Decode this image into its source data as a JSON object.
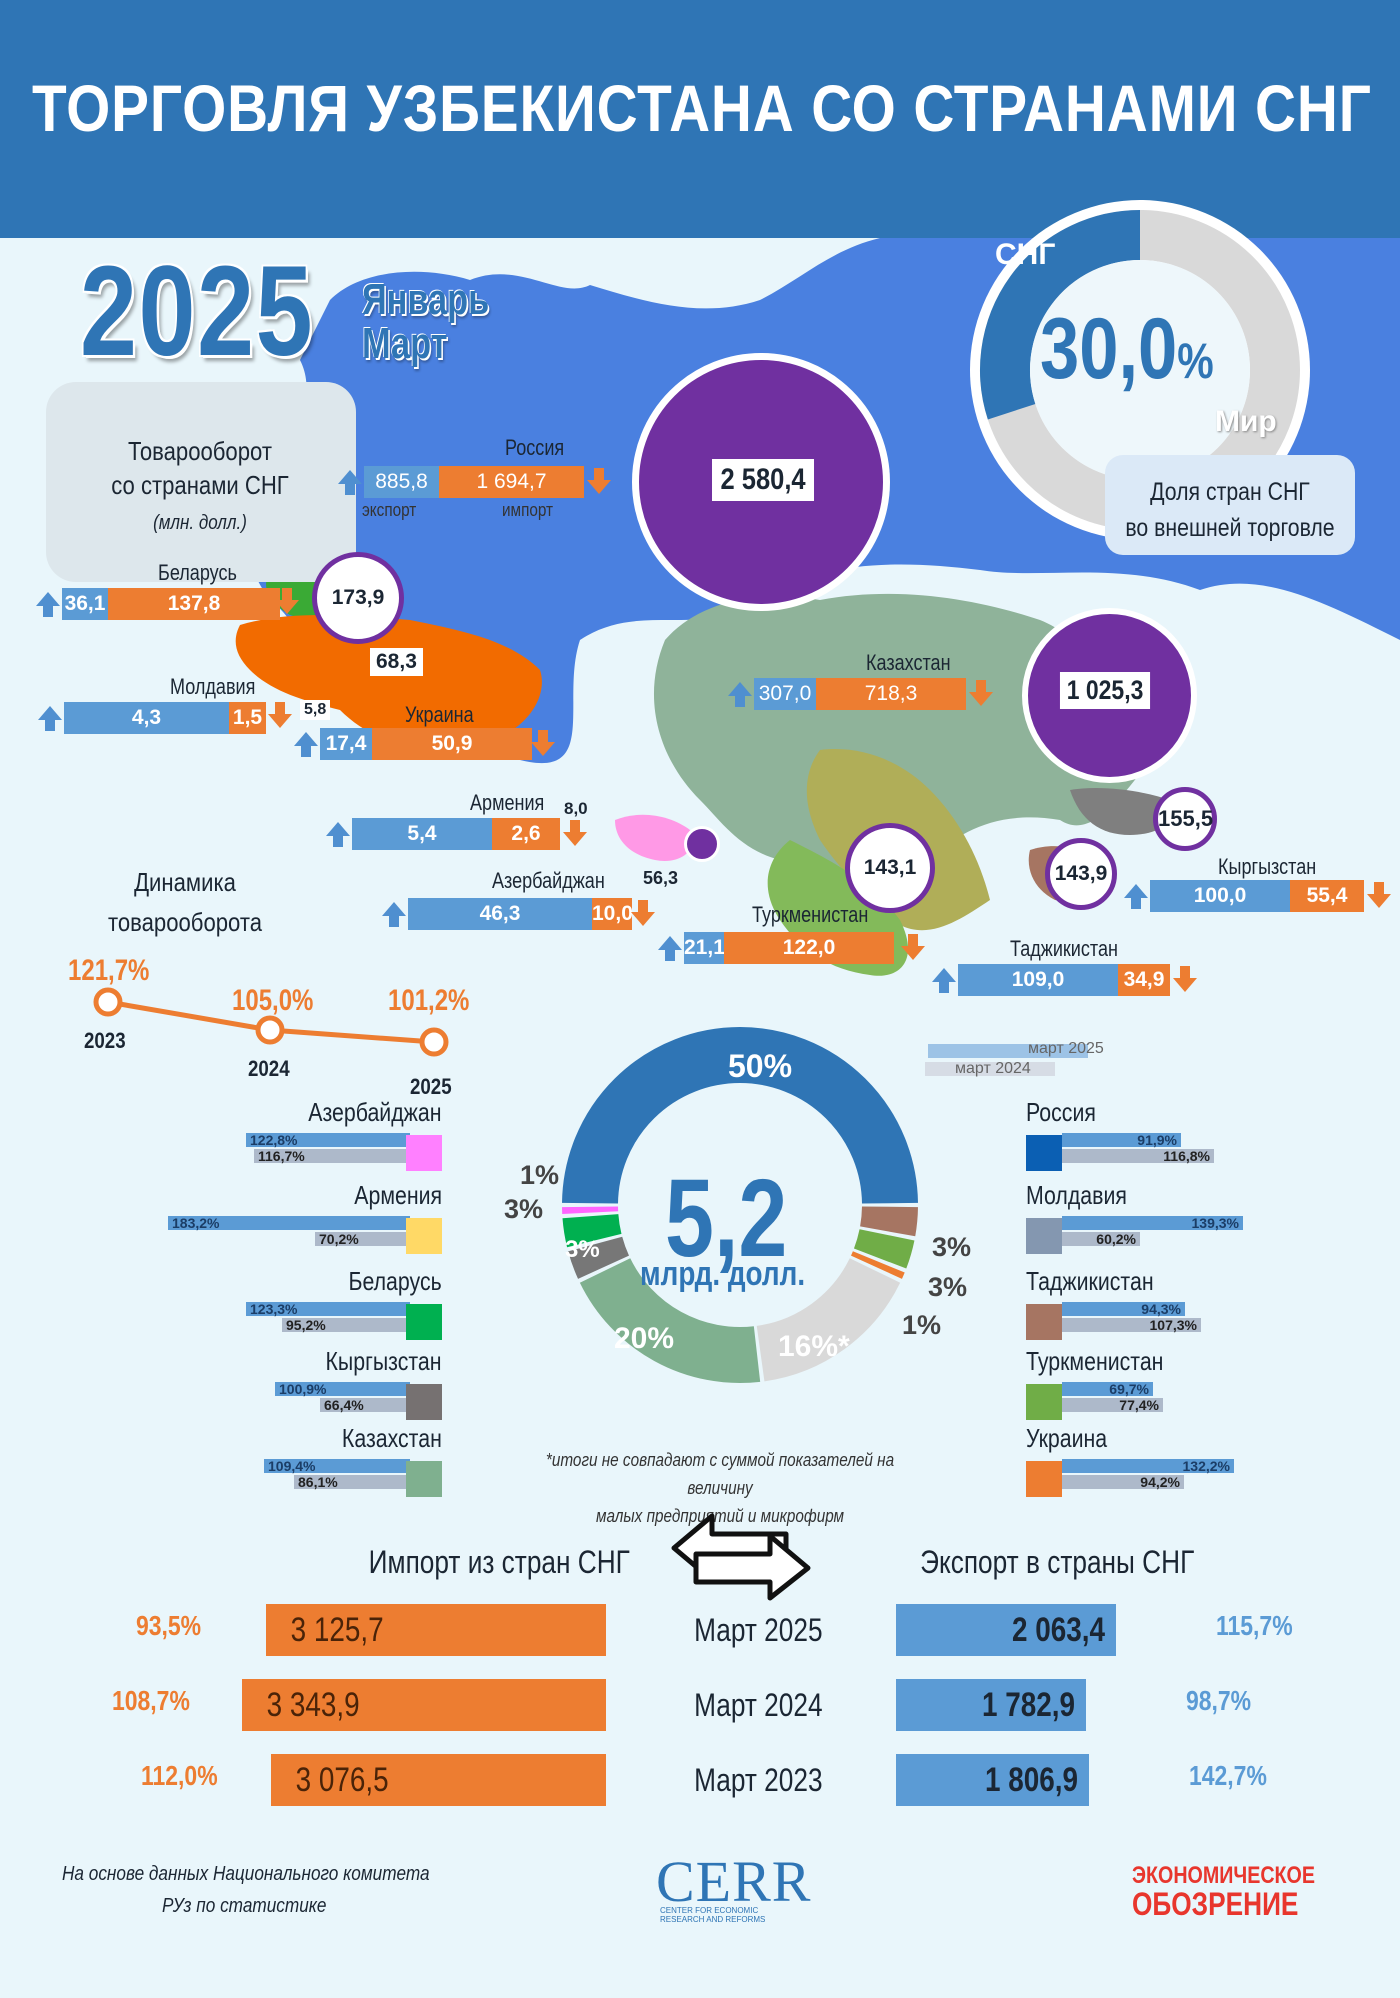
{
  "header": {
    "title": "ТОРГОВЛЯ УЗБЕКИСТАНА СО СТРАНАМИ СНГ"
  },
  "period": {
    "year": "2025",
    "months_line1": "Январь",
    "months_line2": "Март"
  },
  "turnover_box": {
    "label_line1": "Товарооборот",
    "label_line2": "со странами СНГ",
    "unit": "(млн. долл.)"
  },
  "labels": {
    "export": "экспорт",
    "import": "импорт"
  },
  "share": {
    "cis_label": "СНГ",
    "world_label": "Мир",
    "value": "30,0",
    "unit": "%",
    "share_fraction": 0.3,
    "caption_line1": "Доля стран СНГ",
    "caption_line2": "во внешней торговле"
  },
  "countries": [
    {
      "name": "Россия",
      "export": "885,8",
      "import": "1 694,7",
      "total": "2 580,4"
    },
    {
      "name": "Беларусь",
      "export": "36,1",
      "import": "137,8",
      "total": "173,9"
    },
    {
      "name": "Молдавия",
      "export": "4,3",
      "import": "1,5",
      "total": "5,8"
    },
    {
      "name": "Украина",
      "export": "17,4",
      "import": "50,9",
      "total": "68,3"
    },
    {
      "name": "Армения",
      "export": "5,4",
      "import": "2,6",
      "total": "8,0"
    },
    {
      "name": "Азербайджан",
      "export": "46,3",
      "import": "10,0",
      "total": "56,3"
    },
    {
      "name": "Казахстан",
      "export": "307,0",
      "import": "718,3",
      "total": "1 025,3"
    },
    {
      "name": "Туркменистан",
      "export": "21,1",
      "import": "122,0",
      "total": "143,1"
    },
    {
      "name": "Кыргызстан",
      "export": "100,0",
      "import": "55,4",
      "total": "155,5"
    },
    {
      "name": "Таджикистан",
      "export": "109,0",
      "import": "34,9",
      "total": "143,9"
    }
  ],
  "dynamics": {
    "title_line1": "Динамика",
    "title_line2": "товарооборота",
    "points": [
      {
        "year": "2023",
        "value": "121,7%"
      },
      {
        "year": "2024",
        "value": "105,0%"
      },
      {
        "year": "2025",
        "value": "101,2%"
      }
    ]
  },
  "structure": {
    "center_value": "5,2",
    "center_unit": "млрд. долл.",
    "footnote_line1": "*итоги не совпадают с суммой показателей на величину",
    "footnote_line2": "малых предприятий и микрофирм",
    "segments": [
      {
        "label": "50%",
        "value": 50,
        "color": "#2f75b5"
      },
      {
        "label": "3%",
        "value": 3,
        "color": "#a67562"
      },
      {
        "label": "3%",
        "value": 3,
        "color": "#70ad47"
      },
      {
        "label": "1%",
        "value": 1,
        "color": "#ed7d31"
      },
      {
        "label": "16%*",
        "value": 16,
        "color": "#d9d9d9"
      },
      {
        "label": "20%",
        "value": 20,
        "color": "#7fb08f"
      },
      {
        "label": "3%",
        "value": 3,
        "color": "#777777"
      },
      {
        "label": "3%",
        "value": 3,
        "color": "#00b050"
      },
      {
        "label": "1%",
        "value": 1,
        "color": "#ff66ff"
      }
    ]
  },
  "legend": {
    "current": "март 2025",
    "previous": "март 2024"
  },
  "growth_left": [
    {
      "name": "Азербайджан",
      "y2025": "122,8%",
      "y2024": "116,7%",
      "color": "#ff80ff"
    },
    {
      "name": "Армения",
      "y2025": "183,2%",
      "y2024": "70,2%",
      "color": "#ffd966"
    },
    {
      "name": "Беларусь",
      "y2025": "123,3%",
      "y2024": "95,2%",
      "color": "#00b050"
    },
    {
      "name": "Кыргызстан",
      "y2025": "100,9%",
      "y2024": "66,4%",
      "color": "#767171"
    },
    {
      "name": "Казахстан",
      "y2025": "109,4%",
      "y2024": "86,1%",
      "color": "#7fb08f"
    }
  ],
  "growth_right": [
    {
      "name": "Россия",
      "y2025": "91,9%",
      "y2024": "116,8%",
      "color": "#0b5fb3"
    },
    {
      "name": "Молдавия",
      "y2025": "139,3%",
      "y2024": "60,2%",
      "color": "#8497b0"
    },
    {
      "name": "Таджикистан",
      "y2025": "94,3%",
      "y2024": "107,3%",
      "color": "#a67562"
    },
    {
      "name": "Туркменистан",
      "y2025": "69,7%",
      "y2024": "77,4%",
      "color": "#70ad47"
    },
    {
      "name": "Украина",
      "y2025": "132,2%",
      "y2024": "94,2%",
      "color": "#ed7d31"
    }
  ],
  "bottom": {
    "import_title": "Импорт из стран СНГ",
    "export_title": "Экспорт в страны СНГ",
    "rows": [
      {
        "month": "Март 2025",
        "import": "3 125,7",
        "import_pct": "93,5%",
        "export": "2 063,4",
        "export_pct": "115,7%"
      },
      {
        "month": "Март 2024",
        "import": "3 343,9",
        "import_pct": "108,7%",
        "export": "1 782,9",
        "export_pct": "98,7%"
      },
      {
        "month": "Март 2023",
        "import": "3 076,5",
        "import_pct": "112,0%",
        "export": "1 806,9",
        "export_pct": "142,7%"
      }
    ]
  },
  "footer": {
    "source_line1": "На основе данных Национального комитета",
    "source_line2": "РУз по статистике",
    "logo_cerr": "CERR",
    "logo_cerr_sub1": "CENTER FOR ECONOMIC",
    "logo_cerr_sub2": "RESEARCH AND REFORMS",
    "logo_eo_line1": "ЭКОНОМИЧЕСКОЕ",
    "logo_eo_line2": "ОБОЗРЕНИЕ"
  },
  "chart_data": [
    {
      "type": "bar",
      "title": "Товарооборот со странами СНГ",
      "categories": [
        "Россия",
        "Беларусь",
        "Молдавия",
        "Украина",
        "Армения",
        "Азербайджан",
        "Казахстан",
        "Туркменистан",
        "Кыргызстан",
        "Таджикистан"
      ],
      "series": [
        {
          "name": "экспорт",
          "values": [
            885.8,
            36.1,
            4.3,
            17.4,
            5.4,
            46.3,
            307.0,
            21.1,
            100.0,
            109.0
          ]
        },
        {
          "name": "импорт",
          "values": [
            1694.7,
            137.8,
            1.5,
            50.9,
            2.6,
            10.0,
            718.3,
            122.0,
            55.4,
            34.9
          ]
        }
      ]
    },
    {
      "type": "line",
      "title": "Динамика товарооборота",
      "x": [
        "2023",
        "2024",
        "2025"
      ],
      "values": [
        121.7,
        105.0,
        101.2
      ]
    },
    {
      "type": "pie",
      "values": [
        50,
        3,
        3,
        1,
        16,
        20,
        3,
        3,
        1
      ]
    },
    {
      "type": "bar",
      "categories": [
        "Азербайджан",
        "Армения",
        "Беларусь",
        "Кыргызстан",
        "Казахстан",
        "Россия",
        "Молдавия",
        "Таджикистан",
        "Туркменистан",
        "Украина"
      ],
      "series": [
        {
          "name": "март 2025",
          "values": [
            122.8,
            183.2,
            123.3,
            100.9,
            109.4,
            91.9,
            139.3,
            94.3,
            69.7,
            132.2
          ]
        },
        {
          "name": "март 2024",
          "values": [
            116.7,
            70.2,
            95.2,
            66.4,
            86.1,
            116.8,
            60.2,
            107.3,
            77.4,
            94.2
          ]
        }
      ]
    },
    {
      "type": "bar",
      "categories": [
        "Март 2025",
        "Март 2024",
        "Март 2023"
      ],
      "series": [
        {
          "name": "Импорт из стран СНГ",
          "values": [
            3125.7,
            3343.9,
            3076.5
          ]
        },
        {
          "name": "Экспорт в страны СНГ",
          "values": [
            2063.4,
            1782.9,
            1806.9
          ]
        }
      ]
    }
  ]
}
